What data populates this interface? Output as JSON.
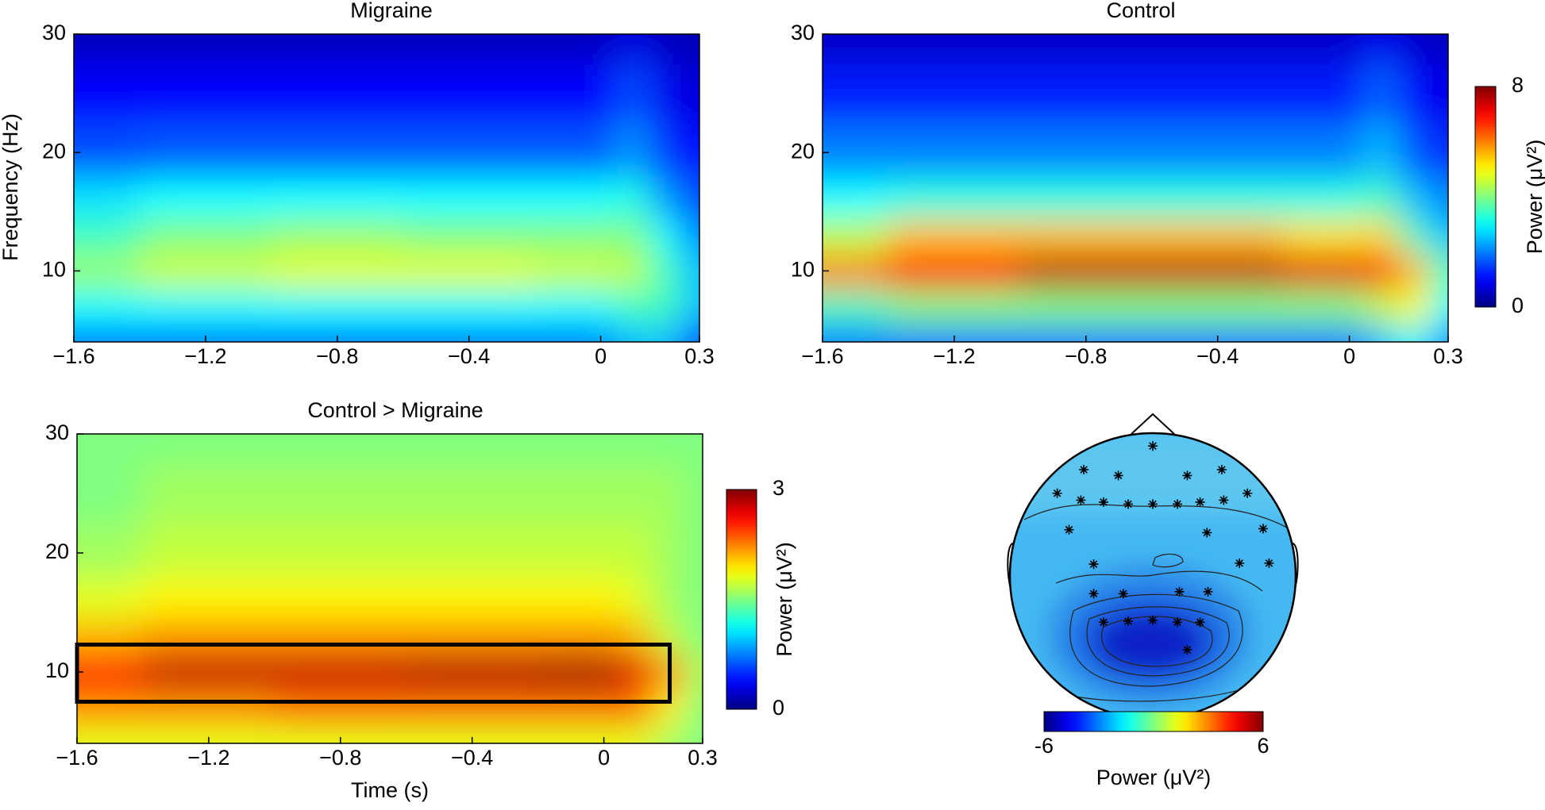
{
  "chart_data": [
    {
      "type": "heatmap",
      "title": "Migraine",
      "ylabel": "Frequency (Hz)",
      "xlim": [
        -1.6,
        0.3
      ],
      "ylim": [
        4,
        30
      ],
      "xticks": [
        {
          "value": -1.6,
          "label": "−1.6"
        },
        {
          "value": -1.2,
          "label": "−1.2"
        },
        {
          "value": -0.8,
          "label": "−0.8"
        },
        {
          "value": -0.4,
          "label": "−0.4"
        },
        0,
        0.3
      ],
      "yticks": [
        10,
        20,
        30
      ],
      "clim": [
        0,
        8
      ],
      "x": [
        -1.6,
        -1.2,
        -0.8,
        -0.4,
        0,
        0.1,
        0.2,
        0.3
      ],
      "y": [
        4,
        7,
        10,
        13,
        16,
        20,
        25,
        30
      ],
      "z": [
        [
          2,
          2,
          2,
          2,
          2,
          2.5,
          2.5,
          1.5
        ],
        [
          3,
          3,
          3,
          3,
          3,
          3.5,
          3.5,
          2.5
        ],
        [
          4.2,
          4.6,
          4.8,
          4.8,
          4.6,
          4.5,
          3.5,
          2.5
        ],
        [
          3.5,
          4,
          4.2,
          4,
          4,
          4,
          3,
          2
        ],
        [
          2.8,
          3,
          3,
          3,
          3,
          3.2,
          2.2,
          1.5
        ],
        [
          1.6,
          1.7,
          1.7,
          1.7,
          1.7,
          2.2,
          1.4,
          1
        ],
        [
          1,
          1,
          1,
          1,
          1,
          1.6,
          0.9,
          0.7
        ],
        [
          0.5,
          0.5,
          0.5,
          0.5,
          0.5,
          0.8,
          0.5,
          0.4
        ]
      ]
    },
    {
      "type": "heatmap",
      "title": "Control",
      "xlim": [
        -1.6,
        0.3
      ],
      "ylim": [
        4,
        30
      ],
      "xticks": [
        {
          "value": -1.6,
          "label": "−1.6"
        },
        {
          "value": -1.2,
          "label": "−1.2"
        },
        {
          "value": -0.8,
          "label": "−0.8"
        },
        {
          "value": -0.4,
          "label": "−0.4"
        },
        0,
        0.3
      ],
      "yticks": [
        10,
        20,
        30
      ],
      "clim": [
        0,
        8
      ],
      "colorbar": {
        "label": "Power (μV²)",
        "ticks": [
          0,
          8
        ]
      },
      "x": [
        -1.6,
        -1.2,
        -0.8,
        -0.4,
        0,
        0.1,
        0.2,
        0.3
      ],
      "y": [
        4,
        7,
        10,
        13,
        16,
        20,
        25,
        30
      ],
      "z": [
        [
          2,
          2,
          2,
          2,
          2,
          2.5,
          3,
          2
        ],
        [
          3.5,
          4,
          4,
          4,
          4,
          4.5,
          5,
          3
        ],
        [
          6,
          7,
          7.5,
          7.5,
          7.2,
          7,
          5.5,
          3.5
        ],
        [
          4.5,
          5.5,
          5.5,
          5.5,
          5.2,
          5.3,
          3.5,
          2.5
        ],
        [
          3,
          3.2,
          3.2,
          3.2,
          3.2,
          3.5,
          2.5,
          2
        ],
        [
          2,
          2,
          2,
          2,
          2,
          2.5,
          1.6,
          1.3
        ],
        [
          1.2,
          1.2,
          1.2,
          1.2,
          1.2,
          1.8,
          1,
          0.8
        ],
        [
          0.6,
          0.6,
          0.6,
          0.6,
          0.6,
          0.9,
          0.6,
          0.5
        ]
      ]
    },
    {
      "type": "heatmap",
      "title": "Control > Migraine",
      "xlabel": "Time (s)",
      "xlim": [
        -1.6,
        0.3
      ],
      "ylim": [
        4,
        30
      ],
      "xticks": [
        {
          "value": -1.6,
          "label": "−1.6"
        },
        {
          "value": -1.2,
          "label": "−1.2"
        },
        {
          "value": -0.8,
          "label": "−0.8"
        },
        {
          "value": -0.4,
          "label": "−0.4"
        },
        0,
        0.3
      ],
      "yticks": [
        10,
        20,
        30
      ],
      "clim": [
        0,
        3
      ],
      "colorbar": {
        "label": "Power (μV²)",
        "ticks": [
          0,
          3
        ]
      },
      "highlight": {
        "x": [
          -1.6,
          0.2
        ],
        "y": [
          7.5,
          12.3
        ]
      },
      "x": [
        -1.6,
        -1.2,
        -0.8,
        -0.4,
        0,
        0.1,
        0.2,
        0.3
      ],
      "y": [
        4,
        7,
        10,
        13,
        16,
        20,
        25,
        30
      ],
      "z": [
        [
          1.8,
          1.8,
          1.8,
          1.8,
          1.8,
          1.8,
          1.6,
          1.5
        ],
        [
          2.2,
          2.2,
          2.3,
          2.3,
          2.3,
          2.3,
          1.9,
          1.5
        ],
        [
          2.6,
          2.8,
          2.8,
          2.85,
          2.9,
          2.7,
          2.2,
          1.6
        ],
        [
          2.1,
          2.2,
          2.2,
          2.2,
          2.2,
          2.1,
          1.7,
          1.5
        ],
        [
          1.8,
          1.9,
          1.9,
          1.9,
          1.9,
          1.8,
          1.6,
          1.5
        ],
        [
          1.6,
          1.7,
          1.7,
          1.7,
          1.7,
          1.7,
          1.6,
          1.5
        ],
        [
          1.5,
          1.6,
          1.6,
          1.6,
          1.6,
          1.6,
          1.6,
          1.5
        ],
        [
          1.5,
          1.5,
          1.5,
          1.5,
          1.5,
          1.5,
          1.5,
          1.5
        ]
      ]
    },
    {
      "type": "topomap",
      "clim": [
        -6,
        6
      ],
      "colorbar": {
        "label": "Power (μV²)",
        "ticks": [
          -6,
          6
        ]
      }
    }
  ]
}
